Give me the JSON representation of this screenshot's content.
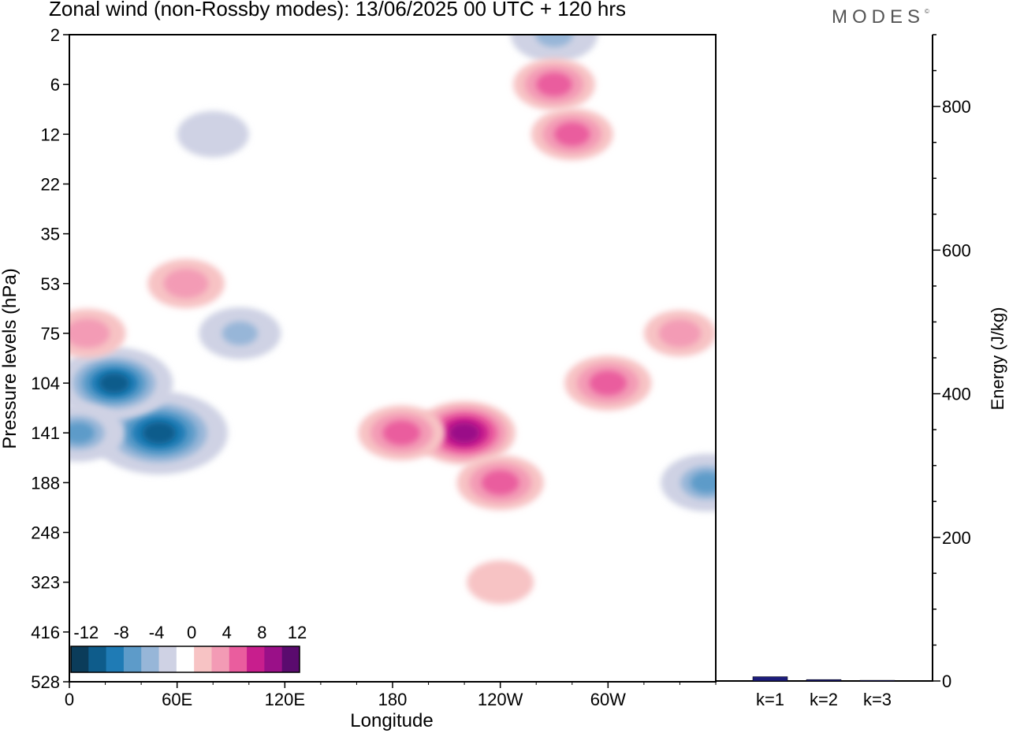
{
  "title": "Zonal wind (non-Rossby modes):  13/06/2025  00 UTC  + 120 hrs",
  "logo": "MODES",
  "logo_mark": "©",
  "colors": {
    "neg": [
      "#0b3c5a",
      "#0e5c8b",
      "#1f7bb5",
      "#5d9bc9",
      "#97b6d8",
      "#cfd2e4"
    ],
    "zero": "#ffffff",
    "pos": [
      "#f7c3c4",
      "#f39bb5",
      "#ea5d9e",
      "#c81e8d",
      "#9a1088",
      "#5a0b6e"
    ],
    "bar": "#1c1c7a"
  },
  "chart_data": [
    {
      "type": "heatmap",
      "title": "Zonal wind (non-Rossby modes):  13/06/2025  00 UTC  + 120 hrs",
      "xlabel": "Longitude",
      "ylabel": "Pressure levels (hPa)",
      "x_ticks": [
        "0",
        "60E",
        "120E",
        "180",
        "120W",
        "60W"
      ],
      "x_tick_values": [
        0,
        60,
        120,
        180,
        240,
        300
      ],
      "x_range": [
        0,
        360
      ],
      "y_ticks": [
        "2",
        "6",
        "12",
        "22",
        "35",
        "53",
        "75",
        "104",
        "141",
        "188",
        "248",
        "323",
        "416",
        "528"
      ],
      "colorbar_labels": [
        "-12",
        "-8",
        "-4",
        "0",
        "4",
        "8",
        "12"
      ],
      "contour_levels": [
        -14,
        -12,
        -10,
        -8,
        -6,
        -4,
        -2,
        2,
        4,
        6,
        8,
        10,
        12,
        14
      ],
      "features": [
        {
          "lon": 50,
          "level": "141",
          "value": -16
        },
        {
          "lon": 25,
          "level": "104",
          "value": -12
        },
        {
          "lon": 5,
          "level": "141",
          "value": -7
        },
        {
          "lon": 95,
          "level": "75",
          "value": -5
        },
        {
          "lon": 220,
          "level": "141",
          "value": 9
        },
        {
          "lon": 185,
          "level": "141",
          "value": 6
        },
        {
          "lon": 240,
          "level": "188",
          "value": 6
        },
        {
          "lon": 300,
          "level": "104",
          "value": 6
        },
        {
          "lon": 10,
          "level": "75",
          "value": 4
        },
        {
          "lon": 65,
          "level": "53",
          "value": 4
        },
        {
          "lon": 280,
          "level": "12",
          "value": 5
        },
        {
          "lon": 355,
          "level": "188",
          "value": -7
        },
        {
          "lon": 270,
          "level": "2",
          "value": -6
        },
        {
          "lon": 270,
          "level": "6",
          "value": 5
        },
        {
          "lon": 80,
          "level": "12",
          "value": -3
        },
        {
          "lon": 340,
          "level": "75",
          "value": 3
        },
        {
          "lon": 240,
          "level": "323",
          "value": 2
        }
      ]
    },
    {
      "type": "bar",
      "ylabel": "Energy (J/kg)",
      "categories": [
        "k=1",
        "k=2",
        "k=3"
      ],
      "values": [
        6,
        2,
        1
      ],
      "ylim": [
        0,
        900
      ],
      "y_ticks": [
        0,
        200,
        400,
        600,
        800
      ]
    }
  ]
}
